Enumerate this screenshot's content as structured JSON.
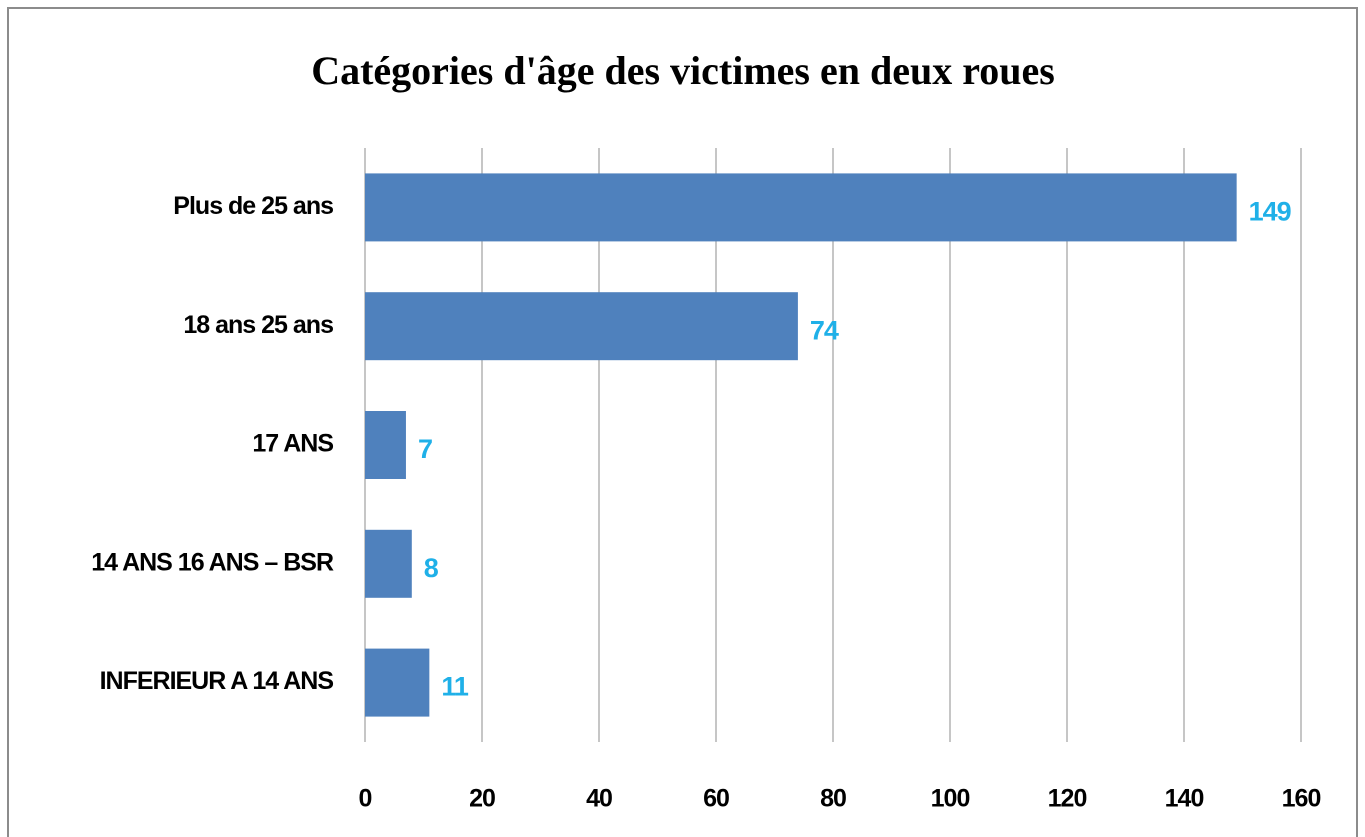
{
  "chart_data": {
    "type": "bar",
    "orientation": "horizontal",
    "title": "Catégories d'âge des victimes en deux roues",
    "categories": [
      "Plus de 25 ans",
      "18 ans 25 ans",
      "17 ANS",
      "14 ANS 16 ANS – BSR",
      "INFERIEUR A 14 ANS"
    ],
    "values": [
      149,
      74,
      7,
      8,
      11
    ],
    "color": "#4f81bd",
    "value_label_color": "#1fb0e8",
    "xlim": [
      0,
      160
    ],
    "xticks": [
      0,
      20,
      40,
      60,
      80,
      100,
      120,
      140,
      160
    ],
    "grid": true
  }
}
